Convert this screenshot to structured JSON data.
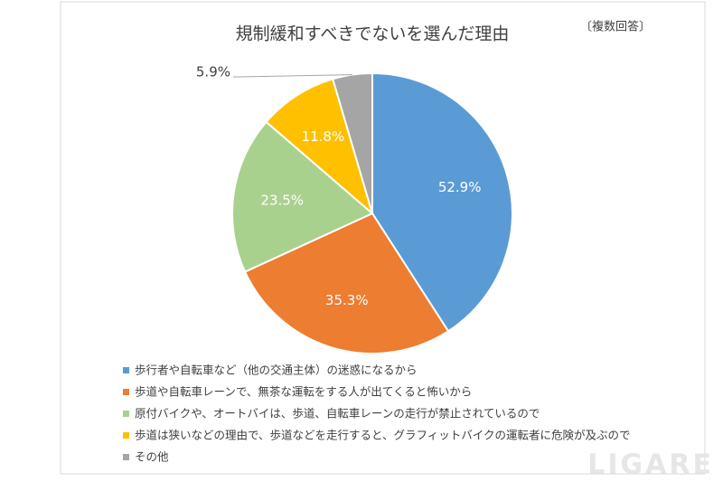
{
  "chart_data": {
    "type": "pie",
    "title": "規制緩和すべきでないを選んだ理由",
    "note": "〔複数回答〕",
    "categories": [
      "歩行者や自転車など（他の交通主体）の迷惑になるから",
      "歩道や自転車レーンで、無茶な運転をする人が出てくると怖いから",
      "原付バイクや、オートバイは、歩道、自転車レーンの走行が禁止されているので",
      "歩道は狭いなどの理由で、歩道などを走行すると、グラフィットバイクの運転者に危険が及ぶので",
      "その他"
    ],
    "values": [
      52.9,
      35.3,
      23.5,
      11.8,
      5.9
    ],
    "value_labels": [
      "52.9%",
      "35.3%",
      "23.5%",
      "11.8%",
      "5.9%"
    ],
    "colors": [
      "#5b9bd5",
      "#ed7d31",
      "#a9d18e",
      "#ffc000",
      "#a5a5a5"
    ],
    "legend": "bottom"
  },
  "watermark": "LIGARE"
}
